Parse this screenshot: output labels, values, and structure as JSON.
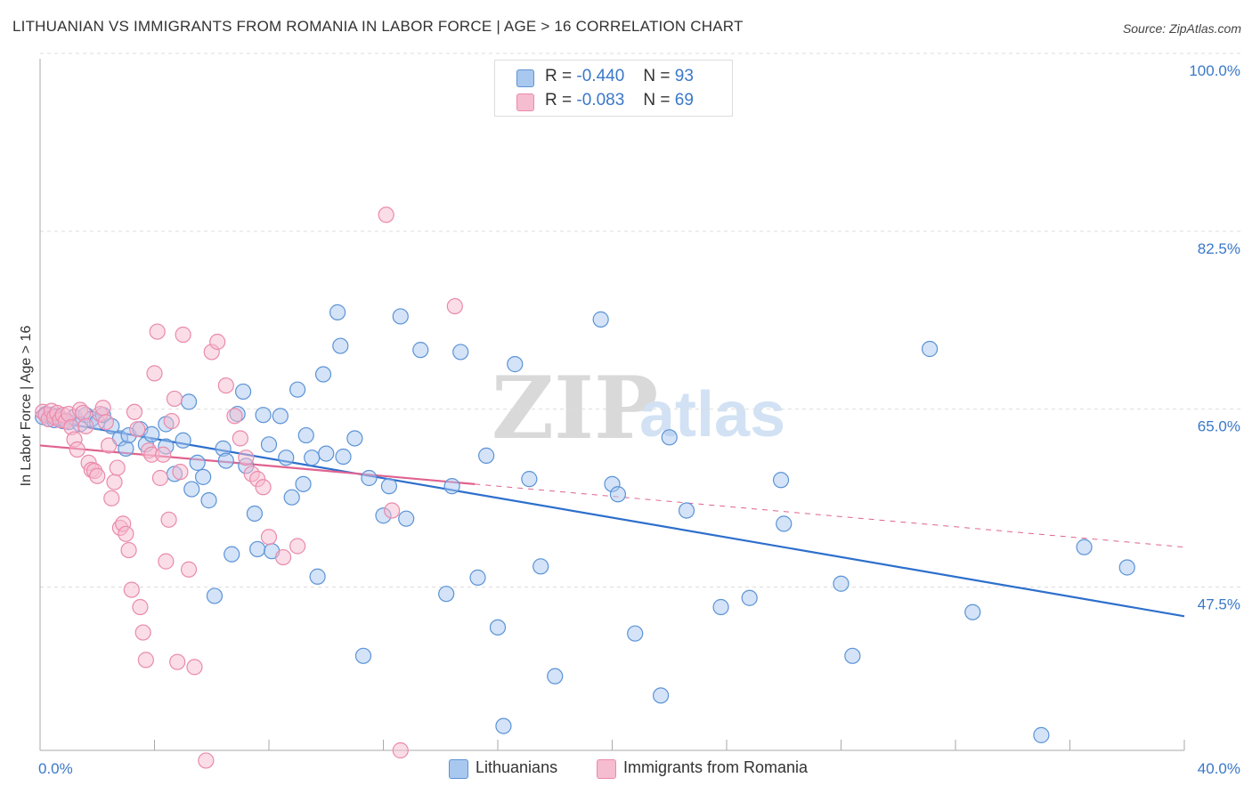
{
  "title": "LITHUANIAN VS IMMIGRANTS FROM ROMANIA IN LABOR FORCE | AGE > 16 CORRELATION CHART",
  "source": "Source: ZipAtlas.com",
  "watermark": {
    "zip": "ZIP",
    "atlas": "atlas"
  },
  "colors": {
    "blue_fill": "#a9c8ef",
    "blue_stroke": "#5b93d6",
    "blue_line": "#2d6fcc",
    "pink_fill": "#f6bcd0",
    "pink_stroke": "#ea8aab",
    "pink_line": "#e0628f",
    "tick_text": "#3a78c8",
    "grid": "#dddddd"
  },
  "stats": [
    {
      "r_label": "R =",
      "r_value": "-0.440",
      "n_label": "N =",
      "n_value": "93",
      "color": "blue"
    },
    {
      "r_label": "R =",
      "r_value": "-0.083",
      "n_label": "N =",
      "n_value": "69",
      "color": "pink"
    }
  ],
  "legend": [
    {
      "label": "Lithuanians",
      "color": "blue"
    },
    {
      "label": "Immigrants from Romania",
      "color": "pink"
    }
  ],
  "chart_data": {
    "type": "scatter",
    "title": "LITHUANIAN VS IMMIGRANTS FROM ROMANIA IN LABOR FORCE | AGE > 16 CORRELATION CHART",
    "xlabel": "",
    "ylabel": "In Labor Force | Age > 16",
    "xlim": [
      0,
      40
    ],
    "ylim": [
      33,
      100
    ],
    "x_tick_labels": [
      {
        "value": 0,
        "label": "0.0%"
      },
      {
        "value": 40,
        "label": "40.0%"
      }
    ],
    "y_tick_labels": [
      {
        "value": 100,
        "label": "100.0%"
      },
      {
        "value": 82.5,
        "label": "82.5%"
      },
      {
        "value": 65,
        "label": "65.0%"
      },
      {
        "value": 47.5,
        "label": "47.5%"
      }
    ],
    "grid": "horizontal dashed",
    "series": [
      {
        "name": "Lithuanians",
        "color": "blue",
        "trend": {
          "x": [
            0,
            40
          ],
          "y": [
            65.6,
            46.2
          ],
          "dashed_from": null
        },
        "points": [
          [
            0.1,
            65.8
          ],
          [
            0.2,
            66.1
          ],
          [
            0.3,
            65.6
          ],
          [
            0.4,
            66.0
          ],
          [
            0.5,
            65.5
          ],
          [
            0.6,
            65.9
          ],
          [
            0.7,
            65.7
          ],
          [
            0.8,
            65.4
          ],
          [
            1.0,
            65.3
          ],
          [
            1.2,
            65.8
          ],
          [
            1.4,
            65.1
          ],
          [
            1.6,
            66.0
          ],
          [
            1.8,
            65.6
          ],
          [
            2.0,
            65.3
          ],
          [
            2.2,
            66.0
          ],
          [
            2.5,
            64.9
          ],
          [
            2.8,
            63.7
          ],
          [
            3.0,
            62.7
          ],
          [
            3.1,
            64.0
          ],
          [
            3.5,
            64.6
          ],
          [
            3.7,
            63.1
          ],
          [
            3.9,
            64.1
          ],
          [
            4.4,
            65.1
          ],
          [
            4.4,
            62.9
          ],
          [
            4.7,
            60.2
          ],
          [
            5.0,
            63.5
          ],
          [
            5.2,
            67.3
          ],
          [
            5.3,
            58.7
          ],
          [
            5.5,
            61.3
          ],
          [
            5.7,
            59.9
          ],
          [
            5.9,
            57.6
          ],
          [
            6.1,
            48.2
          ],
          [
            6.4,
            62.7
          ],
          [
            6.5,
            61.5
          ],
          [
            6.7,
            52.3
          ],
          [
            6.9,
            66.1
          ],
          [
            7.1,
            68.3
          ],
          [
            7.2,
            61.0
          ],
          [
            7.5,
            56.3
          ],
          [
            7.6,
            52.8
          ],
          [
            7.8,
            66.0
          ],
          [
            8.0,
            63.1
          ],
          [
            8.1,
            52.6
          ],
          [
            8.4,
            65.9
          ],
          [
            8.6,
            61.8
          ],
          [
            8.8,
            57.9
          ],
          [
            9.0,
            68.5
          ],
          [
            9.2,
            59.2
          ],
          [
            9.3,
            64.0
          ],
          [
            9.5,
            61.8
          ],
          [
            9.7,
            50.1
          ],
          [
            10.0,
            62.2
          ],
          [
            10.4,
            76.1
          ],
          [
            10.5,
            72.8
          ],
          [
            11.5,
            59.8
          ],
          [
            9.9,
            70.0
          ],
          [
            10.6,
            61.9
          ],
          [
            11.0,
            63.7
          ],
          [
            11.3,
            42.3
          ],
          [
            12.0,
            56.1
          ],
          [
            12.2,
            59.0
          ],
          [
            12.6,
            75.7
          ],
          [
            12.8,
            55.8
          ],
          [
            13.3,
            72.4
          ],
          [
            14.2,
            48.4
          ],
          [
            14.4,
            59.0
          ],
          [
            14.7,
            72.2
          ],
          [
            15.3,
            50.0
          ],
          [
            15.6,
            62.0
          ],
          [
            16.0,
            45.1
          ],
          [
            16.2,
            35.4
          ],
          [
            16.6,
            71.0
          ],
          [
            17.1,
            59.7
          ],
          [
            17.5,
            51.1
          ],
          [
            18.0,
            40.3
          ],
          [
            19.6,
            75.4
          ],
          [
            20.0,
            59.2
          ],
          [
            20.2,
            58.2
          ],
          [
            20.8,
            44.5
          ],
          [
            21.7,
            38.4
          ],
          [
            22.0,
            63.8
          ],
          [
            22.6,
            56.6
          ],
          [
            23.8,
            47.1
          ],
          [
            24.8,
            48.0
          ],
          [
            25.9,
            59.6
          ],
          [
            26.0,
            55.3
          ],
          [
            28.0,
            49.4
          ],
          [
            28.4,
            42.3
          ],
          [
            31.1,
            72.5
          ],
          [
            32.6,
            46.6
          ],
          [
            35.0,
            34.5
          ],
          [
            36.5,
            53.0
          ],
          [
            38.0,
            51.0
          ]
        ]
      },
      {
        "name": "Immigrants from Romania",
        "color": "pink",
        "trend": {
          "x": [
            0,
            15.2,
            40
          ],
          "y": [
            63.0,
            59.2,
            53.0
          ],
          "dashed_from": 15.2
        },
        "points": [
          [
            0.1,
            66.3
          ],
          [
            0.2,
            66.0
          ],
          [
            0.3,
            65.6
          ],
          [
            0.4,
            66.4
          ],
          [
            0.5,
            65.8
          ],
          [
            0.6,
            66.2
          ],
          [
            0.7,
            65.5
          ],
          [
            0.8,
            66.0
          ],
          [
            0.9,
            65.4
          ],
          [
            1.0,
            66.1
          ],
          [
            1.1,
            64.8
          ],
          [
            1.2,
            63.6
          ],
          [
            1.3,
            62.6
          ],
          [
            1.4,
            66.5
          ],
          [
            1.5,
            66.2
          ],
          [
            1.6,
            64.9
          ],
          [
            1.7,
            61.3
          ],
          [
            1.8,
            60.6
          ],
          [
            1.9,
            60.5
          ],
          [
            2.0,
            60.0
          ],
          [
            2.1,
            66.1
          ],
          [
            2.2,
            66.7
          ],
          [
            2.3,
            65.3
          ],
          [
            2.4,
            63.0
          ],
          [
            2.5,
            57.8
          ],
          [
            2.6,
            59.4
          ],
          [
            2.7,
            60.8
          ],
          [
            2.8,
            54.9
          ],
          [
            2.9,
            55.3
          ],
          [
            3.0,
            54.3
          ],
          [
            3.1,
            52.7
          ],
          [
            3.2,
            48.8
          ],
          [
            3.3,
            66.3
          ],
          [
            3.4,
            64.6
          ],
          [
            3.5,
            47.1
          ],
          [
            3.6,
            44.6
          ],
          [
            3.7,
            41.9
          ],
          [
            3.8,
            62.5
          ],
          [
            3.9,
            62.1
          ],
          [
            4.0,
            70.1
          ],
          [
            4.1,
            74.2
          ],
          [
            4.2,
            59.8
          ],
          [
            4.3,
            62.1
          ],
          [
            4.4,
            51.6
          ],
          [
            4.5,
            55.7
          ],
          [
            4.6,
            65.4
          ],
          [
            4.7,
            67.6
          ],
          [
            4.8,
            41.7
          ],
          [
            4.9,
            60.4
          ],
          [
            5.0,
            73.9
          ],
          [
            5.2,
            50.8
          ],
          [
            5.4,
            41.2
          ],
          [
            5.8,
            32.0
          ],
          [
            6.0,
            72.2
          ],
          [
            6.2,
            73.2
          ],
          [
            6.5,
            68.9
          ],
          [
            6.8,
            65.9
          ],
          [
            7.0,
            63.7
          ],
          [
            7.2,
            61.8
          ],
          [
            7.4,
            60.2
          ],
          [
            7.6,
            59.7
          ],
          [
            7.8,
            58.9
          ],
          [
            8.0,
            54.0
          ],
          [
            8.5,
            52.0
          ],
          [
            9.0,
            53.1
          ],
          [
            12.1,
            85.7
          ],
          [
            12.3,
            56.6
          ],
          [
            12.6,
            33.0
          ],
          [
            14.5,
            76.7
          ]
        ]
      }
    ]
  }
}
